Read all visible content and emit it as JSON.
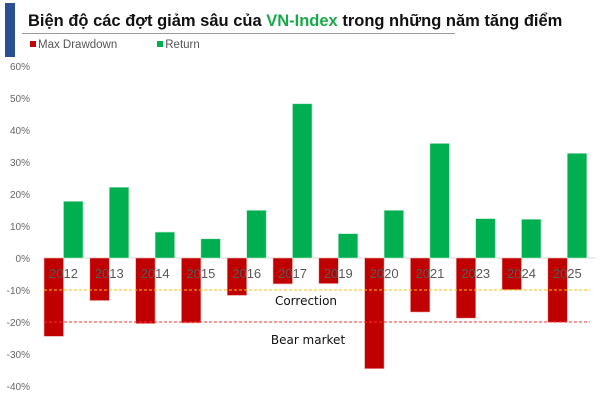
{
  "title": {
    "pre": "Biện độ các đợt giảm sâu của ",
    "highlight": "VN-Index",
    "post": " trong những năm tăng điểm"
  },
  "colors": {
    "drawdown": "#c00000",
    "return": "#00b050",
    "accent": "#2b4f93",
    "correction": "#ffc000",
    "bear": "#ff3030"
  },
  "chart_data": {
    "type": "bar",
    "title": "Biện độ các đợt giảm sâu của VN-Index trong những năm tăng điểm",
    "categories": [
      "2012",
      "2013",
      "2014",
      "2015",
      "2016",
      "2017",
      "2019",
      "2020",
      "2021",
      "2023",
      "2024",
      "2025"
    ],
    "series": [
      {
        "name": "Max Drawdown",
        "values": [
          -24.5,
          -13.3,
          -20.5,
          -20.3,
          -11.7,
          -8.1,
          -8.0,
          -34.6,
          -16.9,
          -18.8,
          -9.9,
          -20.1
        ]
      },
      {
        "name": "Return",
        "values": [
          17.7,
          22.1,
          8.1,
          6.0,
          14.9,
          48.2,
          7.6,
          14.9,
          35.8,
          12.3,
          12.1,
          32.7
        ]
      }
    ],
    "ylim": [
      -40,
      60
    ],
    "yticks": [
      60,
      50,
      40,
      30,
      20,
      10,
      0,
      -10,
      -20,
      -30,
      -40
    ],
    "ytick_labels": [
      "60%",
      "50%",
      "40%",
      "30%",
      "20%",
      "10%",
      "0%",
      "-10%",
      "-20%",
      "-30%",
      "-40%"
    ],
    "reference_lines": [
      {
        "label": "Correction",
        "value": -10
      },
      {
        "label": "Bear market",
        "value": -20
      }
    ],
    "legend": "top-left",
    "grid": false
  }
}
